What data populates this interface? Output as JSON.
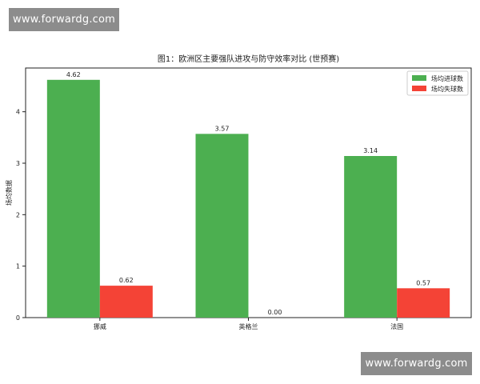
{
  "watermark_top": "www.forwardg.com",
  "watermark_bottom": "www.forwardg.com",
  "chart_data": {
    "type": "bar",
    "title": "图1：欧洲区主要强队进攻与防守效率对比 (世预赛)",
    "xlabel": "",
    "ylabel": "场均数据",
    "categories": [
      "挪威",
      "英格兰",
      "法国"
    ],
    "series": [
      {
        "name": "场均进球数",
        "color": "#4caf50",
        "values": [
          4.62,
          3.57,
          3.14
        ]
      },
      {
        "name": "场均失球数",
        "color": "#f44336",
        "values": [
          0.62,
          0.0,
          0.57
        ]
      }
    ],
    "ylim": [
      0,
      4.85
    ],
    "yticks": [
      0,
      1,
      2,
      3,
      4
    ],
    "legend_position": "top-right",
    "grid": false
  }
}
